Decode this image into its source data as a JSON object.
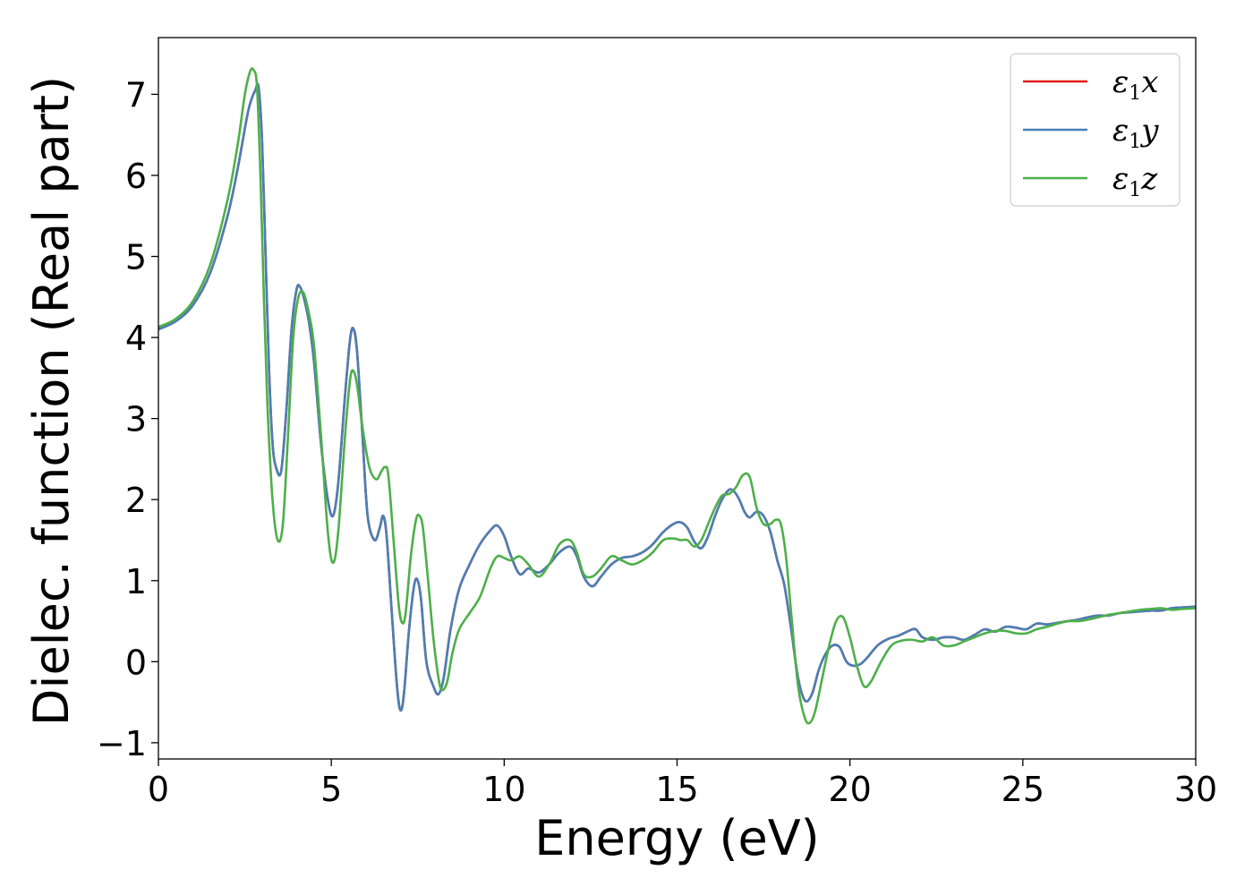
{
  "chart_data": {
    "type": "line",
    "title": "",
    "xlabel": "Energy (eV)",
    "ylabel": "Dielec. function (Real part)",
    "xlim": [
      0,
      30
    ],
    "ylim": [
      -1.2,
      7.7
    ],
    "xticks": [
      0,
      5,
      10,
      15,
      20,
      25,
      30
    ],
    "xtick_labels": [
      "0",
      "5",
      "10",
      "15",
      "20",
      "25",
      "30"
    ],
    "yticks": [
      -1,
      0,
      1,
      2,
      3,
      4,
      5,
      6,
      7
    ],
    "ytick_labels": [
      "−1",
      "0",
      "1",
      "2",
      "3",
      "4",
      "5",
      "6",
      "7"
    ],
    "grid": false,
    "legend": "top-right",
    "series": [
      {
        "name": "ε1x",
        "symbol": "ε",
        "sub": "1",
        "axis": "x",
        "color": "#e41a1c",
        "x": [
          0,
          0.5,
          1.0,
          1.5,
          2.0,
          2.3,
          2.6,
          2.8,
          2.9,
          3.0,
          3.1,
          3.2,
          3.3,
          3.4,
          3.55,
          3.7,
          3.85,
          4.0,
          4.1,
          4.2,
          4.35,
          4.5,
          4.7,
          4.9,
          5.05,
          5.2,
          5.4,
          5.55,
          5.65,
          5.75,
          5.9,
          6.05,
          6.25,
          6.4,
          6.5,
          6.6,
          6.75,
          6.9,
          7.0,
          7.1,
          7.25,
          7.4,
          7.5,
          7.6,
          7.75,
          7.95,
          8.1,
          8.25,
          8.45,
          8.7,
          9.0,
          9.3,
          9.6,
          9.8,
          10.0,
          10.2,
          10.45,
          10.7,
          11.0,
          11.3,
          11.6,
          11.9,
          12.1,
          12.3,
          12.55,
          12.8,
          13.1,
          13.4,
          13.7,
          14.0,
          14.3,
          14.6,
          14.9,
          15.1,
          15.3,
          15.5,
          15.7,
          15.9,
          16.1,
          16.3,
          16.5,
          16.65,
          16.8,
          16.95,
          17.1,
          17.3,
          17.5,
          17.7,
          17.9,
          18.1,
          18.3,
          18.5,
          18.7,
          18.9,
          19.1,
          19.3,
          19.5,
          19.7,
          19.9,
          20.1,
          20.3,
          20.5,
          20.8,
          21.1,
          21.4,
          21.7,
          21.9,
          22.1,
          22.4,
          22.7,
          23.0,
          23.3,
          23.6,
          23.9,
          24.2,
          24.5,
          24.8,
          25.1,
          25.4,
          25.7,
          26.0,
          26.3,
          26.6,
          26.9,
          27.2,
          27.5,
          27.8,
          28.1,
          28.4,
          28.7,
          29.0,
          29.3,
          29.6,
          30.0
        ],
        "y": [
          4.1,
          4.2,
          4.4,
          4.8,
          5.5,
          6.1,
          6.8,
          7.05,
          7.08,
          6.4,
          5.0,
          3.6,
          2.7,
          2.4,
          2.35,
          3.1,
          4.1,
          4.6,
          4.62,
          4.5,
          4.2,
          3.7,
          2.7,
          2.0,
          1.8,
          2.2,
          3.3,
          4.0,
          4.1,
          3.8,
          2.8,
          1.8,
          1.5,
          1.65,
          1.8,
          1.55,
          0.6,
          -0.3,
          -0.6,
          -0.4,
          0.4,
          0.95,
          1.0,
          0.75,
          0.0,
          -0.3,
          -0.4,
          -0.2,
          0.4,
          0.9,
          1.2,
          1.45,
          1.62,
          1.68,
          1.55,
          1.3,
          1.08,
          1.15,
          1.1,
          1.2,
          1.35,
          1.42,
          1.3,
          1.05,
          0.93,
          1.05,
          1.2,
          1.28,
          1.3,
          1.35,
          1.45,
          1.6,
          1.7,
          1.72,
          1.65,
          1.48,
          1.4,
          1.55,
          1.8,
          2.0,
          2.12,
          2.1,
          2.0,
          1.85,
          1.78,
          1.85,
          1.8,
          1.6,
          1.25,
          0.95,
          0.4,
          -0.2,
          -0.48,
          -0.4,
          -0.1,
          0.1,
          0.2,
          0.18,
          0.0,
          -0.05,
          -0.03,
          0.05,
          0.2,
          0.28,
          0.32,
          0.38,
          0.4,
          0.3,
          0.27,
          0.3,
          0.3,
          0.27,
          0.33,
          0.4,
          0.37,
          0.43,
          0.42,
          0.4,
          0.47,
          0.46,
          0.48,
          0.5,
          0.52,
          0.55,
          0.57,
          0.57,
          0.6,
          0.61,
          0.62,
          0.63,
          0.63,
          0.66,
          0.67,
          0.68
        ]
      },
      {
        "name": "ε1y",
        "symbol": "ε",
        "sub": "1",
        "axis": "y",
        "color": "#4a7fb5",
        "x": [
          0,
          0.5,
          1.0,
          1.5,
          2.0,
          2.3,
          2.6,
          2.8,
          2.9,
          3.0,
          3.1,
          3.2,
          3.3,
          3.4,
          3.55,
          3.7,
          3.85,
          4.0,
          4.1,
          4.2,
          4.35,
          4.5,
          4.7,
          4.9,
          5.05,
          5.2,
          5.4,
          5.55,
          5.65,
          5.75,
          5.9,
          6.05,
          6.25,
          6.4,
          6.5,
          6.6,
          6.75,
          6.9,
          7.0,
          7.1,
          7.25,
          7.4,
          7.5,
          7.6,
          7.75,
          7.95,
          8.1,
          8.25,
          8.45,
          8.7,
          9.0,
          9.3,
          9.6,
          9.8,
          10.0,
          10.2,
          10.45,
          10.7,
          11.0,
          11.3,
          11.6,
          11.9,
          12.1,
          12.3,
          12.55,
          12.8,
          13.1,
          13.4,
          13.7,
          14.0,
          14.3,
          14.6,
          14.9,
          15.1,
          15.3,
          15.5,
          15.7,
          15.9,
          16.1,
          16.3,
          16.5,
          16.65,
          16.8,
          16.95,
          17.1,
          17.3,
          17.5,
          17.7,
          17.9,
          18.1,
          18.3,
          18.5,
          18.7,
          18.9,
          19.1,
          19.3,
          19.5,
          19.7,
          19.9,
          20.1,
          20.3,
          20.5,
          20.8,
          21.1,
          21.4,
          21.7,
          21.9,
          22.1,
          22.4,
          22.7,
          23.0,
          23.3,
          23.6,
          23.9,
          24.2,
          24.5,
          24.8,
          25.1,
          25.4,
          25.7,
          26.0,
          26.3,
          26.6,
          26.9,
          27.2,
          27.5,
          27.8,
          28.1,
          28.4,
          28.7,
          29.0,
          29.3,
          29.6,
          30.0
        ],
        "y": [
          4.1,
          4.2,
          4.4,
          4.8,
          5.5,
          6.1,
          6.8,
          7.05,
          7.08,
          6.4,
          5.0,
          3.6,
          2.7,
          2.4,
          2.35,
          3.1,
          4.1,
          4.6,
          4.62,
          4.5,
          4.2,
          3.7,
          2.7,
          2.0,
          1.8,
          2.2,
          3.3,
          4.0,
          4.1,
          3.8,
          2.8,
          1.8,
          1.5,
          1.65,
          1.8,
          1.55,
          0.6,
          -0.3,
          -0.6,
          -0.4,
          0.4,
          0.95,
          1.0,
          0.75,
          0.0,
          -0.3,
          -0.4,
          -0.2,
          0.4,
          0.9,
          1.2,
          1.45,
          1.62,
          1.68,
          1.55,
          1.3,
          1.08,
          1.15,
          1.1,
          1.2,
          1.35,
          1.42,
          1.3,
          1.05,
          0.93,
          1.05,
          1.2,
          1.28,
          1.3,
          1.35,
          1.45,
          1.6,
          1.7,
          1.72,
          1.65,
          1.48,
          1.4,
          1.55,
          1.8,
          2.0,
          2.12,
          2.1,
          2.0,
          1.85,
          1.78,
          1.85,
          1.8,
          1.6,
          1.25,
          0.95,
          0.4,
          -0.2,
          -0.48,
          -0.4,
          -0.1,
          0.1,
          0.2,
          0.18,
          0.0,
          -0.05,
          -0.03,
          0.05,
          0.2,
          0.28,
          0.32,
          0.38,
          0.4,
          0.3,
          0.27,
          0.3,
          0.3,
          0.27,
          0.33,
          0.4,
          0.37,
          0.43,
          0.42,
          0.4,
          0.47,
          0.46,
          0.48,
          0.5,
          0.52,
          0.55,
          0.57,
          0.57,
          0.6,
          0.61,
          0.62,
          0.63,
          0.63,
          0.66,
          0.67,
          0.68
        ]
      },
      {
        "name": "ε1z",
        "symbol": "ε",
        "sub": "1",
        "axis": "z",
        "color": "#4daf4a",
        "x": [
          0,
          0.5,
          1.0,
          1.5,
          2.0,
          2.3,
          2.5,
          2.65,
          2.75,
          2.85,
          2.95,
          3.05,
          3.15,
          3.3,
          3.45,
          3.6,
          3.75,
          3.9,
          4.05,
          4.2,
          4.35,
          4.5,
          4.7,
          4.9,
          5.05,
          5.2,
          5.4,
          5.55,
          5.65,
          5.75,
          5.9,
          6.1,
          6.3,
          6.45,
          6.55,
          6.65,
          6.8,
          6.95,
          7.05,
          7.15,
          7.3,
          7.45,
          7.55,
          7.65,
          7.8,
          7.95,
          8.1,
          8.2,
          8.35,
          8.5,
          8.7,
          9.0,
          9.3,
          9.6,
          9.8,
          10.0,
          10.2,
          10.45,
          10.7,
          11.0,
          11.3,
          11.6,
          11.9,
          12.1,
          12.3,
          12.55,
          12.8,
          13.1,
          13.4,
          13.7,
          14.0,
          14.3,
          14.6,
          14.9,
          15.1,
          15.3,
          15.5,
          15.7,
          15.9,
          16.1,
          16.3,
          16.5,
          16.7,
          16.9,
          17.1,
          17.3,
          17.5,
          17.7,
          17.85,
          18.0,
          18.15,
          18.3,
          18.5,
          18.7,
          18.85,
          19.0,
          19.2,
          19.4,
          19.6,
          19.8,
          20.0,
          20.2,
          20.4,
          20.6,
          20.9,
          21.2,
          21.5,
          21.8,
          22.1,
          22.4,
          22.7,
          23.0,
          23.3,
          23.6,
          23.9,
          24.2,
          24.5,
          24.8,
          25.1,
          25.4,
          25.7,
          26.0,
          26.3,
          26.6,
          26.9,
          27.2,
          27.5,
          27.8,
          28.1,
          28.4,
          28.7,
          29.0,
          29.3,
          29.6,
          30.0
        ],
        "y": [
          4.13,
          4.23,
          4.45,
          4.9,
          5.7,
          6.4,
          7.0,
          7.28,
          7.3,
          7.1,
          6.0,
          4.5,
          3.2,
          2.0,
          1.5,
          1.7,
          2.8,
          4.0,
          4.5,
          4.55,
          4.3,
          3.9,
          2.8,
          1.6,
          1.22,
          1.6,
          2.8,
          3.5,
          3.58,
          3.4,
          2.9,
          2.4,
          2.25,
          2.35,
          2.4,
          2.3,
          1.5,
          0.7,
          0.48,
          0.6,
          1.3,
          1.75,
          1.8,
          1.65,
          1.0,
          0.3,
          -0.2,
          -0.35,
          -0.25,
          0.1,
          0.4,
          0.6,
          0.8,
          1.15,
          1.3,
          1.28,
          1.25,
          1.3,
          1.2,
          1.05,
          1.2,
          1.45,
          1.5,
          1.35,
          1.08,
          1.05,
          1.15,
          1.3,
          1.25,
          1.2,
          1.25,
          1.35,
          1.5,
          1.52,
          1.5,
          1.5,
          1.42,
          1.5,
          1.7,
          1.9,
          2.05,
          2.07,
          2.15,
          2.3,
          2.28,
          1.9,
          1.7,
          1.7,
          1.75,
          1.7,
          1.3,
          0.6,
          -0.3,
          -0.7,
          -0.75,
          -0.6,
          -0.2,
          0.2,
          0.5,
          0.55,
          0.3,
          -0.05,
          -0.3,
          -0.25,
          0.0,
          0.2,
          0.26,
          0.27,
          0.25,
          0.3,
          0.2,
          0.2,
          0.25,
          0.3,
          0.35,
          0.38,
          0.38,
          0.35,
          0.35,
          0.4,
          0.43,
          0.47,
          0.5,
          0.5,
          0.52,
          0.55,
          0.58,
          0.6,
          0.62,
          0.64,
          0.65,
          0.66,
          0.64,
          0.65,
          0.66
        ]
      }
    ]
  }
}
